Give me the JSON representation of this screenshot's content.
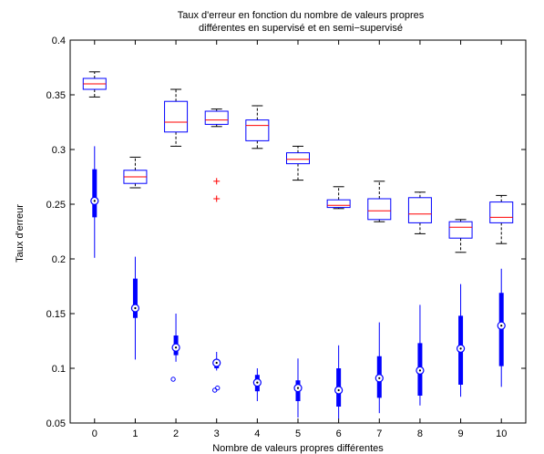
{
  "chart_data": {
    "type": "box",
    "title_lines": [
      "Taux d'erreur en fonction du nombre de valeurs propres",
      "différentes en supervisé et en semi−supervisé"
    ],
    "xlabel": "Nombre de valeurs propres différentes",
    "ylabel": "Taux d'erreur",
    "xlim": [
      -0.6,
      10.6
    ],
    "ylim": [
      0.05,
      0.4
    ],
    "x_ticks": [
      0,
      1,
      2,
      3,
      4,
      5,
      6,
      7,
      8,
      9,
      10
    ],
    "x_tick_labels": [
      "0",
      "1",
      "2",
      "3",
      "4",
      "5",
      "6",
      "7",
      "8",
      "9",
      "10"
    ],
    "y_ticks": [
      0.05,
      0.1,
      0.15,
      0.2,
      0.25,
      0.3,
      0.35,
      0.4
    ],
    "y_tick_labels": [
      "0.05",
      "0.1",
      "0.15",
      "0.2",
      "0.25",
      "0.3",
      "0.35",
      "0.4"
    ],
    "grid": false,
    "colors": {
      "box": "#0000ff",
      "median": "#ff0000",
      "whisker": "#000000",
      "outlier": "#ff0000",
      "compact": "#0000ff"
    },
    "series": [
      {
        "style": "classic-box",
        "boxes": [
          {
            "x": 0,
            "whisker_low": 0.348,
            "q1": 0.355,
            "median": 0.36,
            "q3": 0.365,
            "whisker_high": 0.371,
            "outliers": []
          },
          {
            "x": 1,
            "whisker_low": 0.265,
            "q1": 0.269,
            "median": 0.275,
            "q3": 0.281,
            "whisker_high": 0.293,
            "outliers": []
          },
          {
            "x": 2,
            "whisker_low": 0.303,
            "q1": 0.316,
            "median": 0.325,
            "q3": 0.344,
            "whisker_high": 0.355,
            "outliers": []
          },
          {
            "x": 3,
            "whisker_low": 0.321,
            "q1": 0.323,
            "median": 0.327,
            "q3": 0.335,
            "whisker_high": 0.337,
            "outliers": [
              0.271,
              0.255
            ]
          },
          {
            "x": 4,
            "whisker_low": 0.301,
            "q1": 0.308,
            "median": 0.322,
            "q3": 0.327,
            "whisker_high": 0.34,
            "outliers": []
          },
          {
            "x": 5,
            "whisker_low": 0.272,
            "q1": 0.287,
            "median": 0.291,
            "q3": 0.297,
            "whisker_high": 0.303,
            "outliers": []
          },
          {
            "x": 6,
            "whisker_low": 0.246,
            "q1": 0.247,
            "median": 0.249,
            "q3": 0.254,
            "whisker_high": 0.266,
            "outliers": []
          },
          {
            "x": 7,
            "whisker_low": 0.234,
            "q1": 0.236,
            "median": 0.244,
            "q3": 0.255,
            "whisker_high": 0.271,
            "outliers": []
          },
          {
            "x": 8,
            "whisker_low": 0.223,
            "q1": 0.233,
            "median": 0.241,
            "q3": 0.256,
            "whisker_high": 0.261,
            "outliers": []
          },
          {
            "x": 9,
            "whisker_low": 0.206,
            "q1": 0.219,
            "median": 0.229,
            "q3": 0.234,
            "whisker_high": 0.236,
            "outliers": []
          },
          {
            "x": 10,
            "whisker_low": 0.214,
            "q1": 0.233,
            "median": 0.238,
            "q3": 0.252,
            "whisker_high": 0.258,
            "outliers": []
          }
        ]
      },
      {
        "style": "compact-box",
        "boxes": [
          {
            "x": 0,
            "whisker_low": 0.201,
            "q1": 0.238,
            "median": 0.253,
            "q3": 0.282,
            "whisker_high": 0.303,
            "outliers": []
          },
          {
            "x": 1,
            "whisker_low": 0.108,
            "q1": 0.146,
            "median": 0.155,
            "q3": 0.182,
            "whisker_high": 0.202,
            "outliers": []
          },
          {
            "x": 2,
            "whisker_low": 0.106,
            "q1": 0.112,
            "median": 0.119,
            "q3": 0.13,
            "whisker_high": 0.15,
            "outliers": [
              0.09
            ]
          },
          {
            "x": 3,
            "whisker_low": 0.098,
            "q1": 0.1,
            "median": 0.105,
            "q3": 0.108,
            "whisker_high": 0.115,
            "outliers": [
              0.08,
              0.082
            ]
          },
          {
            "x": 4,
            "whisker_low": 0.07,
            "q1": 0.079,
            "median": 0.087,
            "q3": 0.094,
            "whisker_high": 0.1,
            "outliers": []
          },
          {
            "x": 5,
            "whisker_low": 0.055,
            "q1": 0.07,
            "median": 0.082,
            "q3": 0.089,
            "whisker_high": 0.109,
            "outliers": []
          },
          {
            "x": 6,
            "whisker_low": 0.054,
            "q1": 0.065,
            "median": 0.08,
            "q3": 0.1,
            "whisker_high": 0.121,
            "outliers": []
          },
          {
            "x": 7,
            "whisker_low": 0.059,
            "q1": 0.073,
            "median": 0.091,
            "q3": 0.111,
            "whisker_high": 0.142,
            "outliers": []
          },
          {
            "x": 8,
            "whisker_low": 0.066,
            "q1": 0.075,
            "median": 0.098,
            "q3": 0.123,
            "whisker_high": 0.158,
            "outliers": []
          },
          {
            "x": 9,
            "whisker_low": 0.074,
            "q1": 0.085,
            "median": 0.118,
            "q3": 0.148,
            "whisker_high": 0.177,
            "outliers": []
          },
          {
            "x": 10,
            "whisker_low": 0.083,
            "q1": 0.102,
            "median": 0.139,
            "q3": 0.169,
            "whisker_high": 0.191,
            "outliers": []
          }
        ]
      }
    ]
  }
}
